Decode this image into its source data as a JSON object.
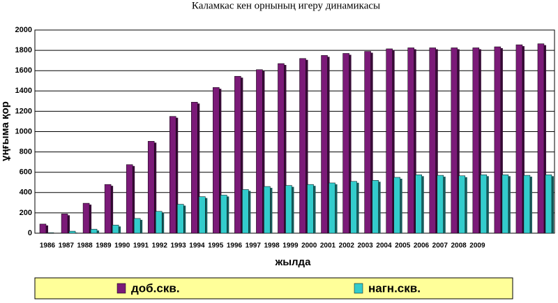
{
  "chart_data": {
    "type": "bar",
    "title": "Каламкас кен орнының игеру динамикасы",
    "x_label": "жылда",
    "y_label": "ұңғыма қор",
    "categories": [
      "1986",
      "1987",
      "1988",
      "1989",
      "1990",
      "1991",
      "1992",
      "1993",
      "1994",
      "1995",
      "1996",
      "1997",
      "1998",
      "1999",
      "2000",
      "2001",
      "2002",
      "2003",
      "2004",
      "2005",
      "2006",
      "2007",
      "2008",
      "2009"
    ],
    "series": [
      {
        "name": "доб.скв.",
        "color": "#7b1a78",
        "values": [
          90,
          190,
          295,
          480,
          675,
          905,
          1150,
          1290,
          1435,
          1545,
          1610,
          1670,
          1720,
          1750,
          1770,
          1790,
          1815,
          1825,
          1825,
          1825,
          1825,
          1835,
          1855,
          1865
        ]
      },
      {
        "name": "нагн.скв.",
        "color": "#33cccc",
        "values": [
          5,
          20,
          40,
          80,
          145,
          215,
          285,
          360,
          375,
          430,
          460,
          470,
          480,
          495,
          510,
          520,
          550,
          575,
          570,
          565,
          575,
          575,
          570,
          575
        ]
      }
    ],
    "ylim": [
      0,
      2000
    ],
    "yticks": [
      0,
      200,
      400,
      600,
      800,
      1000,
      1200,
      1400,
      1600,
      1800,
      2000
    ],
    "grid": true
  }
}
